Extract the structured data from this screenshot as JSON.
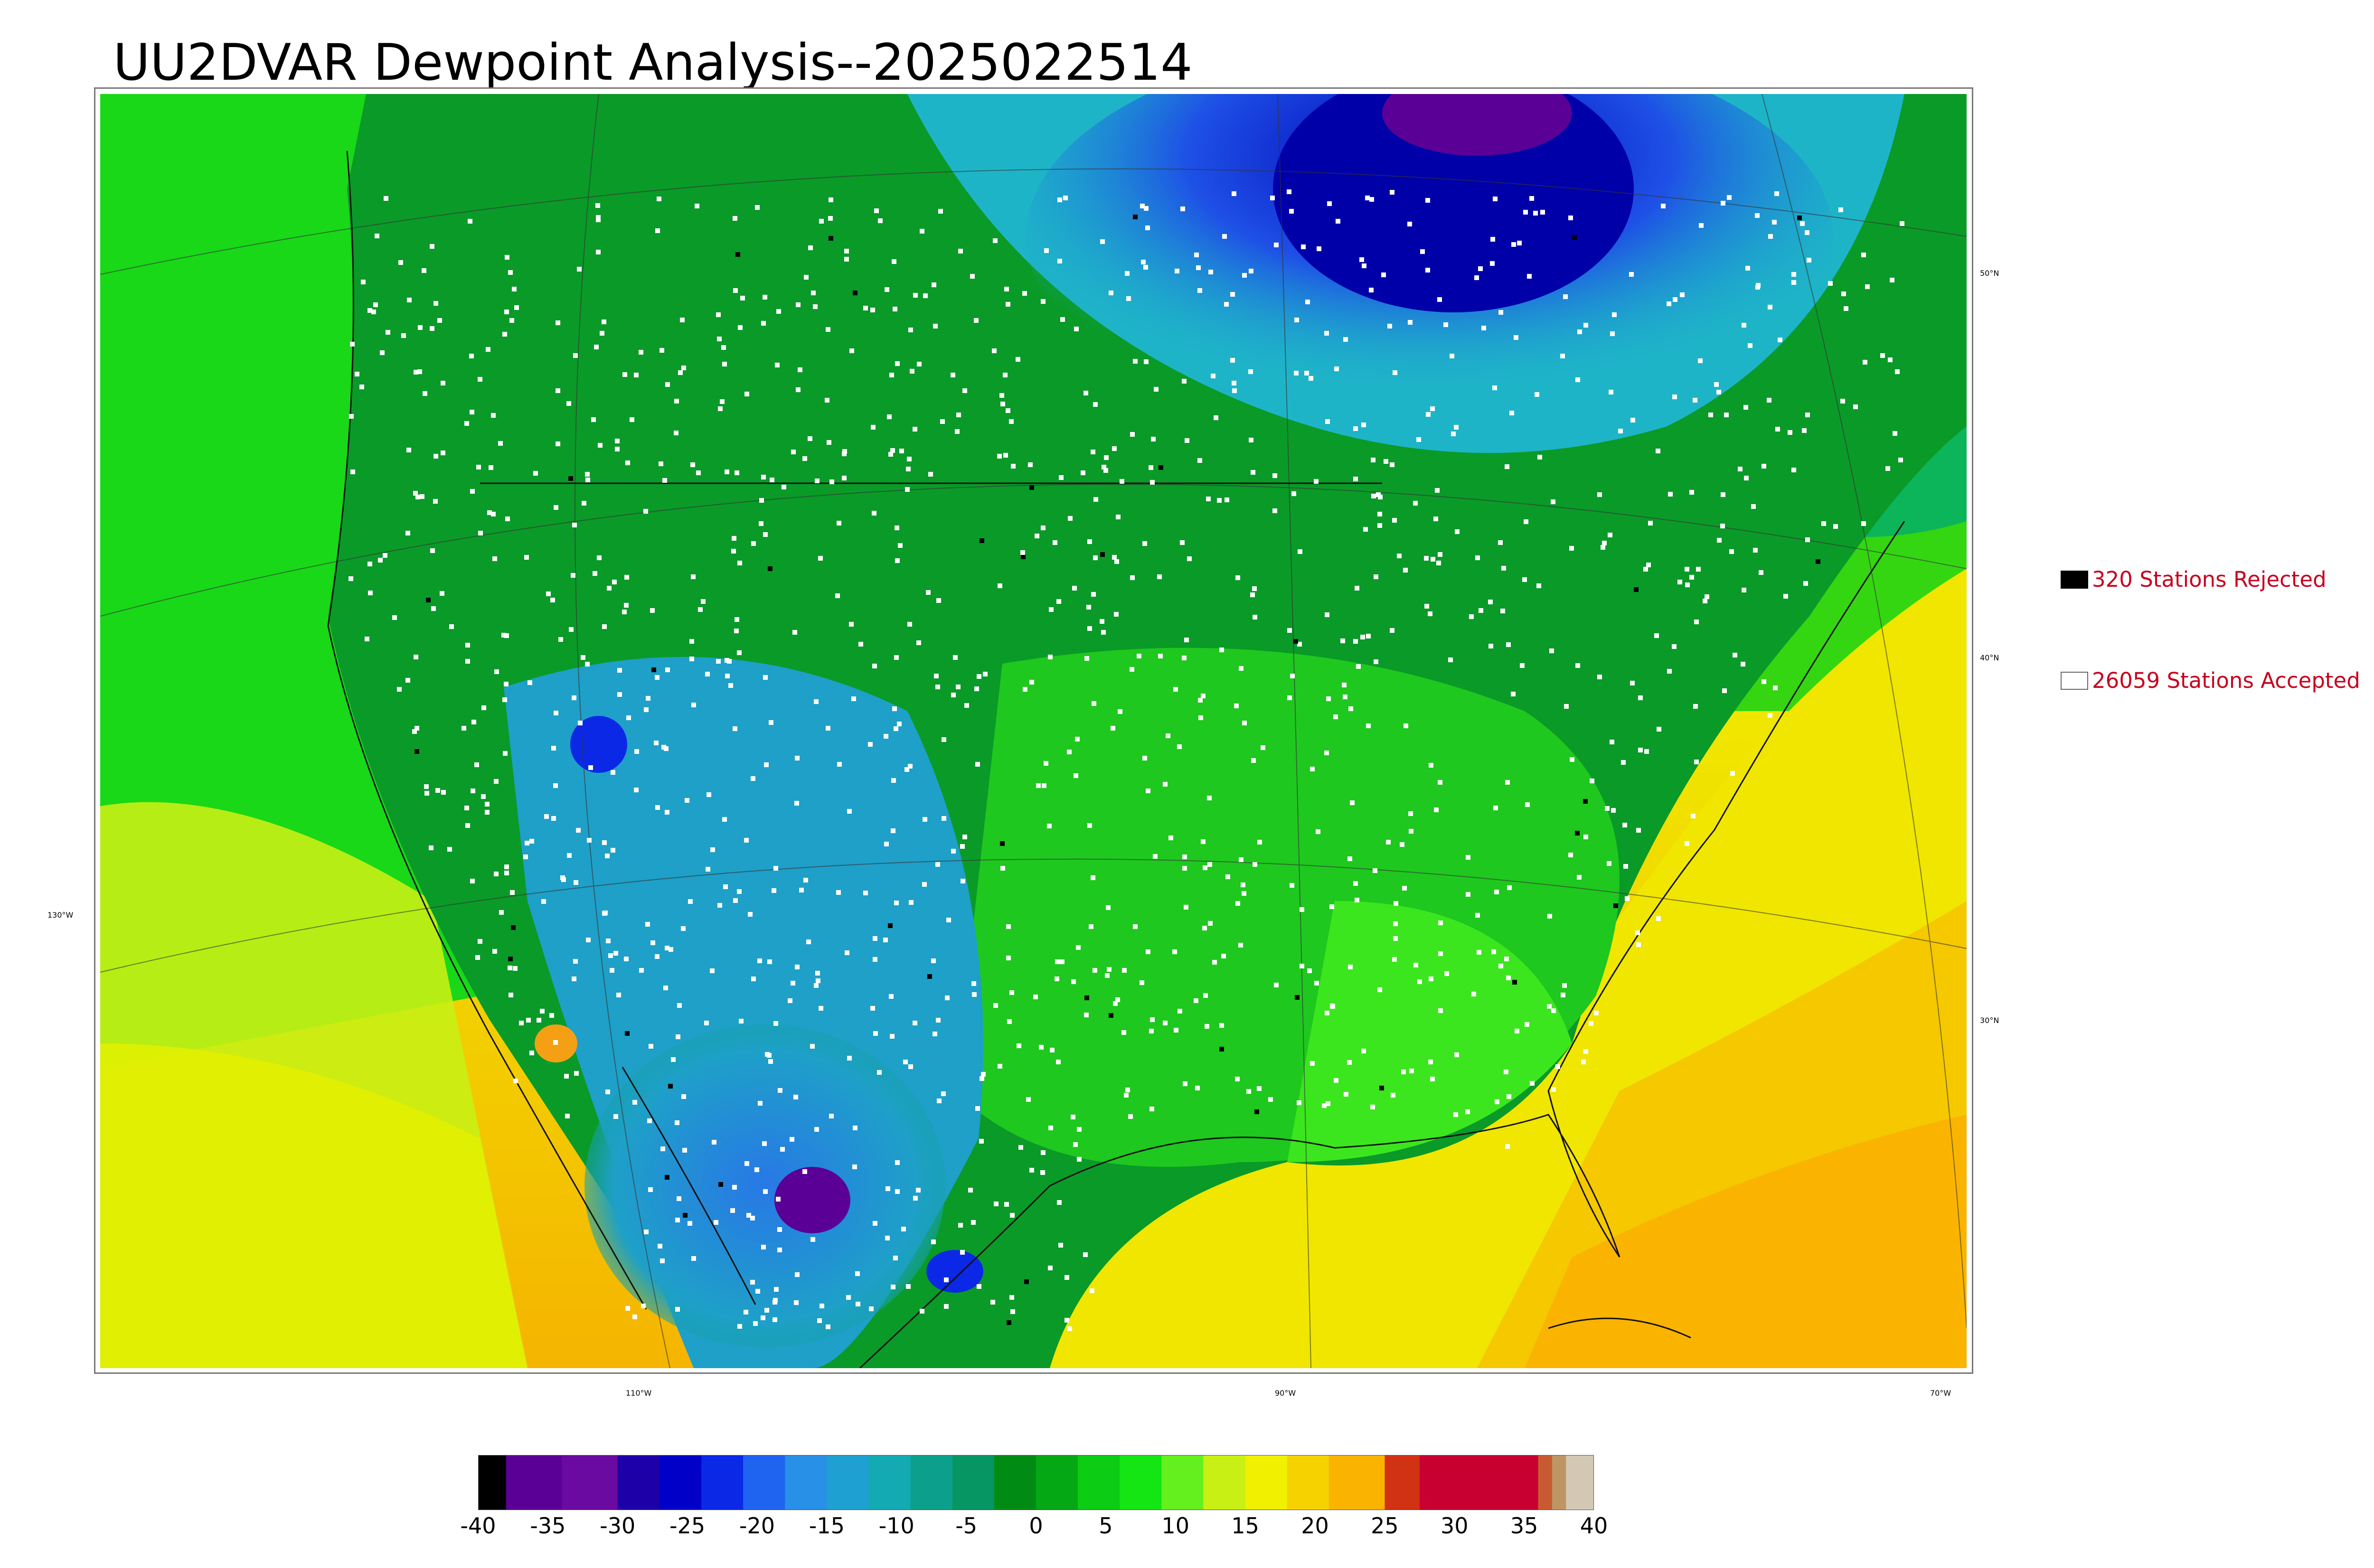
{
  "title": "UU2DVAR Dewpoint Analysis--2025022514",
  "legend": {
    "rejected": {
      "label": "320 Stations Rejected",
      "swatch_color": "#000000"
    },
    "accepted": {
      "label": "26059 Stations Accepted",
      "swatch_color": "#ffffff"
    }
  },
  "axes": {
    "longitude_labels": [
      "130°W",
      "110°W",
      "90°W",
      "70°W"
    ],
    "latitude_labels": [
      "50°N",
      "40°N",
      "30°N"
    ]
  },
  "colorbar": {
    "ticks": [
      "-40",
      "-35",
      "-30",
      "-25",
      "-20",
      "-15",
      "-10",
      "-5",
      "0",
      "5",
      "10",
      "15",
      "20",
      "25",
      "30",
      "35",
      "40"
    ],
    "range": [
      -40,
      40
    ],
    "colors": [
      {
        "from": -40,
        "to": -38,
        "color": "#000000"
      },
      {
        "from": -38,
        "to": -34,
        "color": "#5a0096"
      },
      {
        "from": -34,
        "to": -30,
        "color": "#6a0aa0"
      },
      {
        "from": -30,
        "to": -27,
        "color": "#1e00a8"
      },
      {
        "from": -27,
        "to": -24,
        "color": "#0000c8"
      },
      {
        "from": -24,
        "to": -21,
        "color": "#0a28e6"
      },
      {
        "from": -21,
        "to": -18,
        "color": "#1e64f0"
      },
      {
        "from": -18,
        "to": -15,
        "color": "#2890e6"
      },
      {
        "from": -15,
        "to": -12,
        "color": "#1ea0d2"
      },
      {
        "from": -12,
        "to": -9,
        "color": "#14aab4"
      },
      {
        "from": -9,
        "to": -6,
        "color": "#0ca08c"
      },
      {
        "from": -6,
        "to": -3,
        "color": "#069664"
      },
      {
        "from": -3,
        "to": 0,
        "color": "#008c14"
      },
      {
        "from": 0,
        "to": 3,
        "color": "#04a814"
      },
      {
        "from": 3,
        "to": 6,
        "color": "#0ccc14"
      },
      {
        "from": 6,
        "to": 9,
        "color": "#14e614"
      },
      {
        "from": 9,
        "to": 12,
        "color": "#64f01e"
      },
      {
        "from": 12,
        "to": 15,
        "color": "#c8f014"
      },
      {
        "from": 15,
        "to": 18,
        "color": "#f0f000"
      },
      {
        "from": 18,
        "to": 21,
        "color": "#f5d200"
      },
      {
        "from": 21,
        "to": 25,
        "color": "#fab400"
      },
      {
        "from": 25,
        "to": 27.5,
        "color": "#d23214"
      },
      {
        "from": 27.5,
        "to": 36,
        "color": "#c80032"
      },
      {
        "from": 36,
        "to": 37,
        "color": "#c85a32"
      },
      {
        "from": 37,
        "to": 38,
        "color": "#be9664"
      },
      {
        "from": 38,
        "to": 40,
        "color": "#d2c8b4"
      }
    ]
  }
}
